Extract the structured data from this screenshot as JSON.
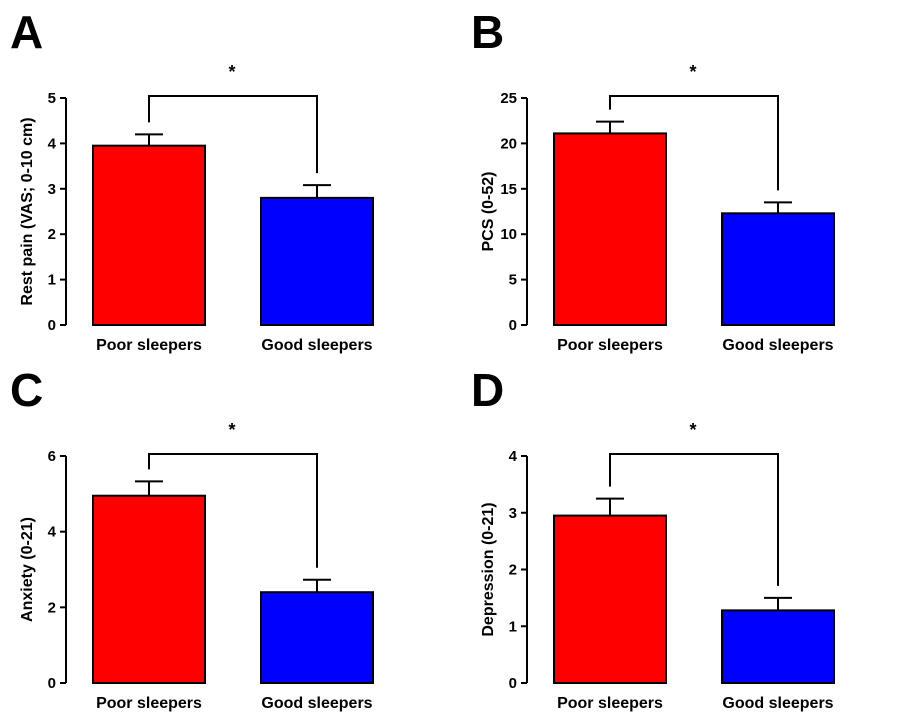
{
  "chart_data": [
    {
      "panel": "A",
      "type": "bar",
      "categories": [
        "Poor sleepers",
        "Good sleepers"
      ],
      "values": [
        3.95,
        2.8
      ],
      "errors": [
        0.25,
        0.28
      ],
      "colors": [
        "#ff0000",
        "#0000ff"
      ],
      "ylabel": "Rest pain (VAS; 0-10 cm)",
      "ylim": [
        0,
        5
      ],
      "yticks": [
        0,
        1,
        2,
        3,
        4,
        5
      ],
      "significance": "*",
      "grid": false
    },
    {
      "panel": "B",
      "type": "bar",
      "categories": [
        "Poor sleepers",
        "Good sleepers"
      ],
      "values": [
        21.1,
        12.3
      ],
      "errors": [
        1.3,
        1.2
      ],
      "colors": [
        "#ff0000",
        "#0000ff"
      ],
      "ylabel": "PCS (0-52)",
      "ylim": [
        0,
        25
      ],
      "yticks": [
        0,
        5,
        10,
        15,
        20,
        25
      ],
      "significance": "*",
      "grid": false
    },
    {
      "panel": "C",
      "type": "bar",
      "categories": [
        "Poor sleepers",
        "Good sleepers"
      ],
      "values": [
        4.95,
        2.4
      ],
      "errors": [
        0.38,
        0.33
      ],
      "colors": [
        "#ff0000",
        "#0000ff"
      ],
      "ylabel": "Anxiety (0-21)",
      "ylim": [
        0,
        6
      ],
      "yticks": [
        0,
        2,
        4,
        6
      ],
      "significance": "*",
      "grid": false
    },
    {
      "panel": "D",
      "type": "bar",
      "categories": [
        "Poor sleepers",
        "Good sleepers"
      ],
      "values": [
        2.95,
        1.28
      ],
      "errors": [
        0.3,
        0.22
      ],
      "colors": [
        "#ff0000",
        "#0000ff"
      ],
      "ylabel": "Depression (0-21)",
      "ylim": [
        0,
        4
      ],
      "yticks": [
        0,
        1,
        2,
        3,
        4
      ],
      "significance": "*",
      "grid": false
    }
  ]
}
